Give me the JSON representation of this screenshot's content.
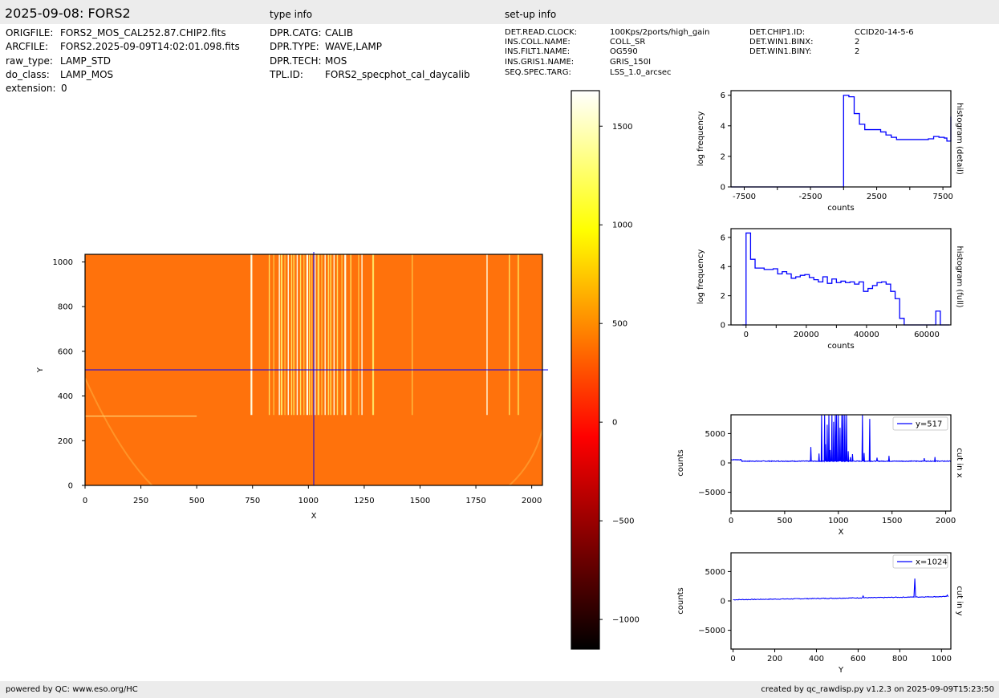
{
  "header": {
    "title": "2025-09-08: FORS2",
    "type_info_label": "type info",
    "setup_info_label": "set-up info"
  },
  "file_info": [
    {
      "key": "ORIGFILE:",
      "value": "FORS2_MOS_CAL252.87.CHIP2.fits"
    },
    {
      "key": "ARCFILE:",
      "value": "FORS2.2025-09-09T14:02:01.098.fits"
    },
    {
      "key": "raw_type:",
      "value": "LAMP_STD"
    },
    {
      "key": "do_class:",
      "value": "LAMP_MOS"
    },
    {
      "key": "extension:",
      "value": "0"
    }
  ],
  "type_info": [
    {
      "key": "DPR.CATG:",
      "value": "CALIB"
    },
    {
      "key": "DPR.TYPE:",
      "value": "WAVE,LAMP"
    },
    {
      "key": "DPR.TECH:",
      "value": "MOS"
    },
    {
      "key": "TPL.ID:",
      "value": "FORS2_specphot_cal_daycalib"
    }
  ],
  "setup_info_col1": [
    {
      "key": "DET.READ.CLOCK:",
      "value": "100Kps/2ports/high_gain"
    },
    {
      "key": "INS.COLL.NAME:",
      "value": "COLL_SR"
    },
    {
      "key": "INS.FILT1.NAME:",
      "value": "OG590"
    },
    {
      "key": "INS.GRIS1.NAME:",
      "value": "GRIS_150I"
    },
    {
      "key": "SEQ.SPEC.TARG:",
      "value": "LSS_1.0_arcsec"
    }
  ],
  "setup_info_col2": [
    {
      "key": "DET.CHIP1.ID:",
      "value": "CCID20-14-5-6"
    },
    {
      "key": "DET.WIN1.BINX:",
      "value": "2"
    },
    {
      "key": "DET.WIN1.BINY:",
      "value": "2"
    }
  ],
  "footer": {
    "left": "powered by QC: www.eso.org/HC",
    "right": "created by qc_rawdisp.py v1.2.3 on 2025-09-09T15:23:50"
  },
  "colors": {
    "line": "#0000ff",
    "axis": "#000000",
    "background_panels": "#ececec"
  },
  "chart_data": [
    {
      "id": "image",
      "type": "heatmap",
      "xlabel": "X",
      "ylabel": "Y",
      "xlim": [
        0,
        2048
      ],
      "ylim": [
        0,
        1034
      ],
      "xticks": [
        0,
        250,
        500,
        750,
        1000,
        1250,
        1500,
        1750,
        2000
      ],
      "yticks": [
        0,
        200,
        400,
        600,
        800,
        1000
      ],
      "crosshair": {
        "x": 1024,
        "y": 517
      },
      "background_counts": 280,
      "arc_lines_x": [
        745,
        825,
        845,
        870,
        880,
        895,
        910,
        925,
        935,
        950,
        965,
        980,
        995,
        1005,
        1015,
        1030,
        1045,
        1060,
        1075,
        1090,
        1100,
        1115,
        1130,
        1150,
        1165,
        1190,
        1225,
        1240,
        1290,
        1465,
        1800,
        1900,
        1940
      ],
      "arc_lines_y": [
        315,
        1034
      ]
    },
    {
      "id": "colorbar",
      "type": "heatmap",
      "range": [
        -1150,
        1680
      ],
      "ticks": [
        -1000,
        -500,
        0,
        500,
        1000,
        1500
      ],
      "colormap": "hot"
    },
    {
      "id": "hist_detail",
      "type": "line",
      "xlabel": "counts",
      "ylabel": "log frequency",
      "side_label": "histogram (detail)",
      "xlim": [
        -8500,
        8100
      ],
      "ylim": [
        0,
        6.3
      ],
      "xticks": [
        -7500,
        -2500,
        2500,
        7500
      ],
      "xticks_minor": [
        -5000,
        0,
        5000
      ],
      "yticks": [
        0,
        2,
        4,
        6
      ],
      "step": true,
      "x": [
        -8500,
        0,
        0,
        400,
        800,
        1200,
        1600,
        2000,
        2400,
        2800,
        3200,
        3600,
        4000,
        4400,
        4800,
        5200,
        5600,
        6000,
        6400,
        6800,
        7200,
        7600,
        7800,
        8100
      ],
      "y": [
        0,
        0,
        6.0,
        5.9,
        4.8,
        4.1,
        3.75,
        3.75,
        3.75,
        3.6,
        3.4,
        3.25,
        3.1,
        3.1,
        3.1,
        3.1,
        3.1,
        3.1,
        3.15,
        3.3,
        3.25,
        3.2,
        3.0,
        4.6
      ]
    },
    {
      "id": "hist_full",
      "type": "line",
      "xlabel": "counts",
      "ylabel": "log frequency",
      "side_label": "histogram (full)",
      "xlim": [
        -5000,
        68000
      ],
      "ylim": [
        0,
        6.6
      ],
      "xticks": [
        0,
        20000,
        40000,
        60000
      ],
      "xticks_minor": [
        10000,
        30000,
        50000
      ],
      "yticks": [
        0,
        2,
        4,
        6
      ],
      "step": true,
      "x": [
        -1200,
        0,
        1500,
        3000,
        6000,
        9000,
        10500,
        12000,
        13500,
        15000,
        16500,
        18000,
        19500,
        21000,
        22500,
        24000,
        25500,
        27000,
        28500,
        30000,
        31500,
        33000,
        34500,
        36000,
        37500,
        39000,
        40500,
        42000,
        43500,
        45000,
        46500,
        48000,
        49500,
        51000,
        52500,
        54000,
        55500,
        57000,
        58500,
        60000,
        61500,
        63000,
        64500,
        66000,
        67500
      ],
      "y": [
        0,
        6.3,
        4.5,
        3.9,
        3.8,
        3.85,
        3.5,
        3.65,
        3.5,
        3.2,
        3.3,
        3.4,
        3.45,
        3.25,
        3.1,
        2.95,
        3.3,
        2.85,
        3.15,
        2.9,
        3.0,
        2.9,
        2.95,
        2.8,
        2.95,
        2.3,
        2.5,
        2.7,
        2.9,
        2.95,
        2.8,
        2.3,
        1.8,
        0.45,
        0.0,
        0.0,
        0.0,
        0.0,
        0.0,
        0.0,
        0.0,
        0.95,
        0.0,
        0.0,
        0.0
      ]
    },
    {
      "id": "cut_x",
      "type": "line",
      "xlabel": "X",
      "ylabel": "counts",
      "side_label": "cut in x",
      "legend": "y=517",
      "legend_position": "top-right",
      "xlim": [
        0,
        2048
      ],
      "ylim": [
        -8200,
        8200
      ],
      "xticks": [
        0,
        500,
        1000,
        1500,
        2000
      ],
      "yticks": [
        -5000,
        0,
        5000
      ],
      "baseline": 300,
      "peaks": [
        [
          745,
          2700
        ],
        [
          820,
          1600
        ],
        [
          845,
          8200
        ],
        [
          870,
          8200
        ],
        [
          880,
          3200
        ],
        [
          895,
          6500
        ],
        [
          910,
          8200
        ],
        [
          925,
          2200
        ],
        [
          940,
          8200
        ],
        [
          955,
          7000
        ],
        [
          970,
          8200
        ],
        [
          985,
          8200
        ],
        [
          1000,
          8200
        ],
        [
          1015,
          6000
        ],
        [
          1030,
          8200
        ],
        [
          1045,
          8200
        ],
        [
          1060,
          8200
        ],
        [
          1075,
          8200
        ],
        [
          1090,
          2000
        ],
        [
          1110,
          1000
        ],
        [
          1130,
          1500
        ],
        [
          1225,
          8200
        ],
        [
          1240,
          1700
        ],
        [
          1290,
          7500
        ],
        [
          1360,
          900
        ],
        [
          1470,
          1200
        ],
        [
          1800,
          800
        ],
        [
          1900,
          1000
        ]
      ]
    },
    {
      "id": "cut_y",
      "type": "line",
      "xlabel": "Y",
      "ylabel": "counts",
      "side_label": "cut in y",
      "legend": "x=1024",
      "legend_position": "top-right",
      "xlim": [
        -10,
        1045
      ],
      "ylim": [
        -8200,
        8200
      ],
      "xticks": [
        0,
        200,
        400,
        600,
        800,
        1000
      ],
      "yticks": [
        -5000,
        0,
        5000
      ],
      "baseline_start": 200,
      "baseline_end": 750,
      "peaks": [
        [
          625,
          850
        ],
        [
          870,
          3800
        ],
        [
          1028,
          1000
        ]
      ]
    }
  ]
}
